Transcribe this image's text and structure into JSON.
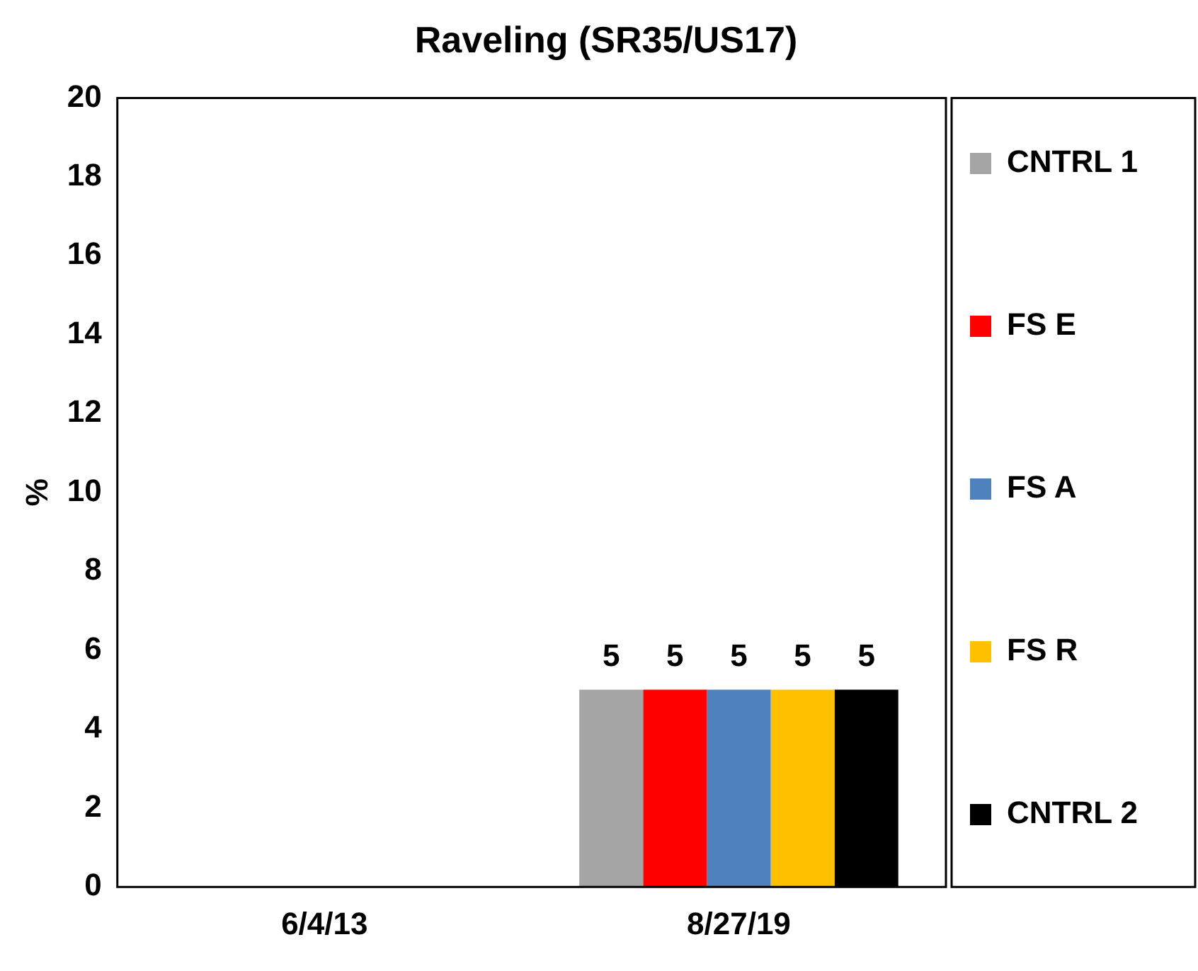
{
  "chart_data": {
    "type": "bar",
    "title": "Raveling (SR35/US17)",
    "ylabel": "%",
    "categories": [
      "6/4/13",
      "8/27/19"
    ],
    "series": [
      {
        "name": "CNTRL 1",
        "color": "#a5a5a5",
        "values": [
          null,
          5
        ]
      },
      {
        "name": "FS E",
        "color": "#ff0000",
        "values": [
          null,
          5
        ]
      },
      {
        "name": "FS A",
        "color": "#4f81bd",
        "values": [
          null,
          5
        ]
      },
      {
        "name": "FS R",
        "color": "#ffc000",
        "values": [
          null,
          5
        ]
      },
      {
        "name": "CNTRL 2",
        "color": "#000000",
        "values": [
          null,
          5
        ]
      }
    ],
    "ylim": [
      0,
      20
    ],
    "yticks": [
      0,
      2,
      4,
      6,
      8,
      10,
      12,
      14,
      16,
      18,
      20
    ],
    "grid": false,
    "legend": "right",
    "data_labels": true
  }
}
